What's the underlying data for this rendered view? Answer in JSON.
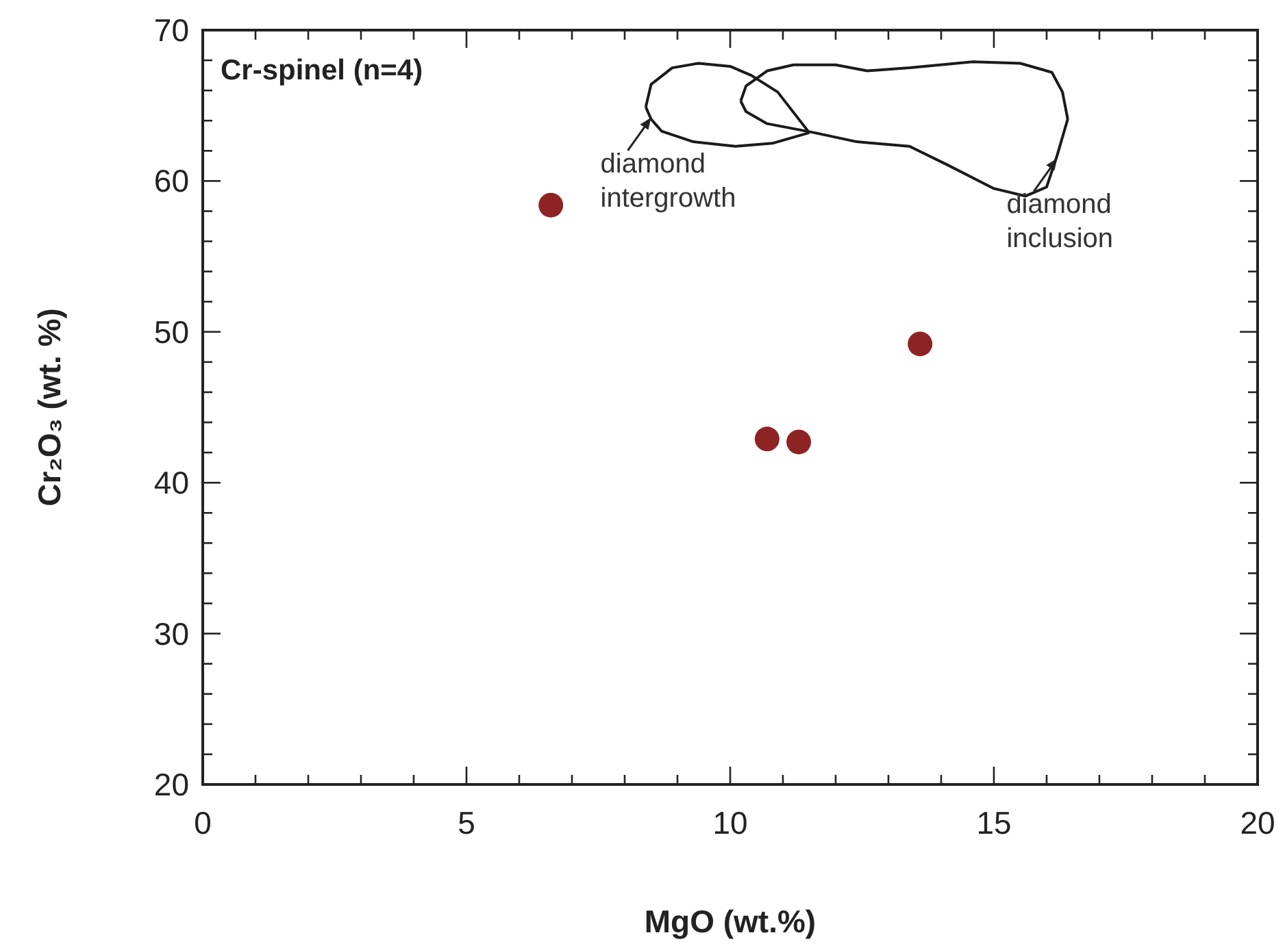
{
  "chart_data": {
    "type": "scatter",
    "title": "Cr-spinel (n=4)",
    "xlabel": "MgO (wt.%)",
    "ylabel": "Cr₂O₃ (wt. %)",
    "xlim": [
      0,
      20
    ],
    "ylim": [
      20,
      70
    ],
    "xticks": [
      0,
      {
        "value": 1,
        "label": null
      },
      {
        "value": 2,
        "label": null
      },
      {
        "value": 3,
        "label": null
      },
      {
        "value": 4,
        "label": null
      },
      5,
      {
        "value": 6,
        "label": null
      },
      {
        "value": 7,
        "label": null
      },
      {
        "value": 8,
        "label": null
      },
      {
        "value": 9,
        "label": null
      },
      10,
      {
        "value": 11,
        "label": null
      },
      {
        "value": 12,
        "label": null
      },
      {
        "value": 13,
        "label": null
      },
      {
        "value": 14,
        "label": null
      },
      15,
      {
        "value": 16,
        "label": null
      },
      {
        "value": 17,
        "label": null
      },
      {
        "value": 18,
        "label": null
      },
      {
        "value": 19,
        "label": null
      },
      20
    ],
    "yticks": [
      20,
      {
        "value": 22,
        "label": null
      },
      {
        "value": 24,
        "label": null
      },
      {
        "value": 26,
        "label": null
      },
      {
        "value": 28,
        "label": null
      },
      30,
      {
        "value": 32,
        "label": null
      },
      {
        "value": 34,
        "label": null
      },
      {
        "value": 36,
        "label": null
      },
      {
        "value": 38,
        "label": null
      },
      40,
      {
        "value": 42,
        "label": null
      },
      {
        "value": 44,
        "label": null
      },
      {
        "value": 46,
        "label": null
      },
      {
        "value": 48,
        "label": null
      },
      50,
      {
        "value": 52,
        "label": null
      },
      {
        "value": 54,
        "label": null
      },
      {
        "value": 56,
        "label": null
      },
      {
        "value": 58,
        "label": null
      },
      60,
      {
        "value": 62,
        "label": null
      },
      {
        "value": 64,
        "label": null
      },
      {
        "value": 66,
        "label": null
      },
      {
        "value": 68,
        "label": null
      },
      70
    ],
    "marker": "circle",
    "grid": false,
    "series": [
      {
        "color": "#8e2323",
        "x": [
          6.6,
          10.7,
          11.3,
          13.6
        ],
        "values": [
          58.4,
          42.9,
          42.7,
          49.2
        ]
      },
      {
        "type": "line",
        "color": "#1a1a1a",
        "marker": "none",
        "x": [
          8.4,
          8.5,
          8.9,
          9.4,
          10.0,
          10.4,
          10.9,
          11.5
        ],
        "values": [
          64.9,
          66.4,
          67.5,
          67.8,
          67.6,
          67.0,
          65.9,
          63.2
        ]
      },
      {
        "type": "line",
        "color": "#1a1a1a",
        "marker": "none",
        "x": [
          8.4,
          8.5,
          8.7,
          9.3,
          10.1,
          10.8,
          11.5
        ],
        "values": [
          64.9,
          64.1,
          63.3,
          62.6,
          62.3,
          62.5,
          63.2
        ]
      },
      {
        "type": "line",
        "color": "#1a1a1a",
        "marker": "none",
        "x": [
          10.2,
          10.3,
          10.7,
          11.2,
          12.0,
          12.6,
          13.4,
          14.6,
          15.5,
          16.1,
          16.3,
          16.4
        ],
        "values": [
          65.3,
          66.3,
          67.3,
          67.7,
          67.7,
          67.3,
          67.5,
          67.9,
          67.8,
          67.2,
          65.9,
          64.1
        ]
      },
      {
        "type": "line",
        "color": "#1a1a1a",
        "marker": "none",
        "x": [
          10.2,
          10.3,
          10.7,
          11.6,
          12.4,
          13.4,
          14.1,
          15.0,
          15.6,
          16.0,
          16.2,
          16.4
        ],
        "values": [
          65.3,
          64.6,
          63.8,
          63.2,
          62.6,
          62.3,
          61.1,
          59.5,
          59.0,
          59.6,
          61.7,
          64.1
        ]
      }
    ],
    "annotations": [
      {
        "text": "diamond\nintergrowth",
        "x": 8.5,
        "y": 64.2
      },
      {
        "text": "diamond\ninclusion",
        "x": 16.2,
        "y": 61.5
      }
    ]
  }
}
